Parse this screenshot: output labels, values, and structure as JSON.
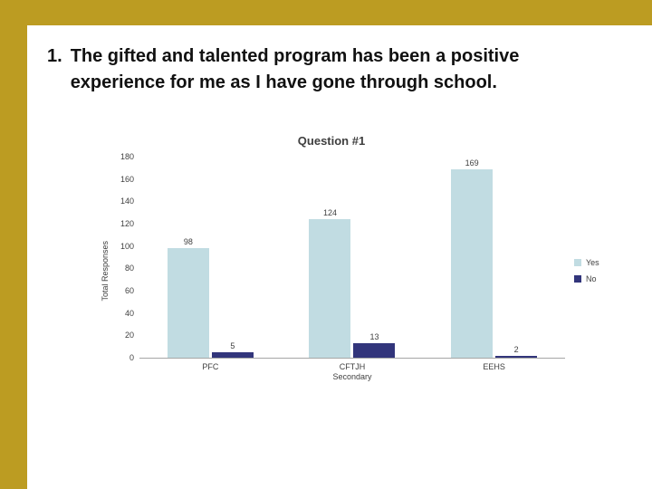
{
  "slide": {
    "title_number": "1.",
    "title_text": "The gifted and talented program has been a positive experience for me as I have gone through school."
  },
  "chart_data": {
    "type": "bar",
    "title": "Question #1",
    "xlabel": "",
    "ylabel": "Total Responses",
    "categories": [
      "PFC",
      "CFTJH\nSecondary",
      "EEHS"
    ],
    "series": [
      {
        "name": "Yes",
        "values": [
          98,
          124,
          169
        ],
        "color": "#c1dce2"
      },
      {
        "name": "No",
        "values": [
          5,
          13,
          2
        ],
        "color": "#32357b"
      }
    ],
    "ylim": [
      0,
      180
    ],
    "ytick_step": 20,
    "grid": false,
    "legend_position": "right"
  },
  "theme": {
    "border_color": "#bc9c22"
  }
}
